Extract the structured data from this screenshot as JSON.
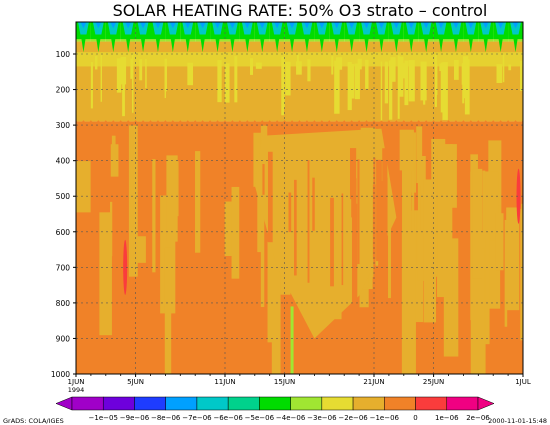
{
  "chart_data": {
    "type": "heatmap",
    "title": "SOLAR HEATING RATE: 50% O3 strato – control",
    "xlabel": "",
    "ylabel": "",
    "x_ticks": [
      "1JUN",
      "5JUN",
      "11JUN",
      "15JUN",
      "21JUN",
      "25JUN",
      "1JUL"
    ],
    "x_tick_days": [
      0,
      4,
      10,
      14,
      20,
      24,
      30
    ],
    "x_year_label": "1994",
    "xlim": [
      0,
      30
    ],
    "y_ticks": [
      100,
      200,
      300,
      400,
      500,
      600,
      700,
      800,
      900,
      1000
    ],
    "ylim": [
      1000,
      10
    ],
    "y_axis": "pressure (top low, bottom high)",
    "grid": true,
    "colorbar": {
      "labels": [
        "−1e−05",
        "−9e−06",
        "−8e−06",
        "−7e−06",
        "−6e−06",
        "−5e−06",
        "−4e−06",
        "−3e−06",
        "−2e−06",
        "−1e−06",
        "0",
        "1e−06",
        "2e−06"
      ],
      "colors": [
        "#a000c8",
        "#6e00dc",
        "#1e3cff",
        "#00a0ff",
        "#00c8c8",
        "#00d28c",
        "#00dc00",
        "#a0e632",
        "#e6dc32",
        "#e6af2d",
        "#f08228",
        "#fa3c3c",
        "#f00082"
      ]
    },
    "regions": [
      {
        "p_top": 10,
        "p_bottom": 65,
        "level": "−4e−06 to −1e−06",
        "note": "diurnal green/teal oscillation at top"
      },
      {
        "p_top": 65,
        "p_bottom": 290,
        "level": "−1e−06 to 0",
        "note": "mostly light orange with yellow streaks"
      },
      {
        "p_top": 290,
        "p_bottom": 1000,
        "level": "0 to 1e−06",
        "note": "mostly orange with light-orange patches"
      }
    ],
    "max_spots": [
      {
        "day": 29.7,
        "p": 500,
        "level": "1e−06 to 2e−06"
      },
      {
        "day": 3.3,
        "p": 700,
        "level": "1e−06 to 2e−06"
      }
    ]
  },
  "labels": {
    "credit": "GrADS: COLA/IGES",
    "timestamp": "2000-11-01-15:48"
  },
  "colors": {
    "light_orange": "#e6af2d",
    "orange": "#f08228",
    "yellow": "#e6dc32",
    "yellow_green": "#a0e632",
    "green": "#00dc00",
    "teal": "#00c8c8",
    "blue": "#00a0ff",
    "red": "#fa3c3c"
  }
}
